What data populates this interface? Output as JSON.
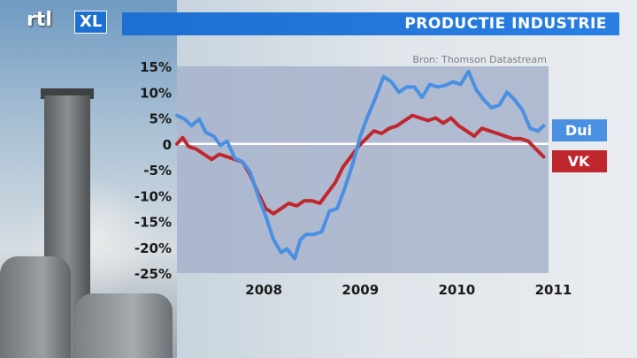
{
  "logo": {
    "rtl": "rtl",
    "xl": "XL"
  },
  "header": {
    "title": "PRODUCTIE INDUSTRIE"
  },
  "chart_data": {
    "type": "line",
    "title": "PRODUCTIE INDUSTRIE",
    "source": "Bron: Thomson Datastream",
    "ylim": [
      -25,
      15
    ],
    "xlim": [
      2007.6,
      2011.45
    ],
    "yticks": [
      15,
      10,
      5,
      0,
      -5,
      -10,
      -15,
      -20,
      -25
    ],
    "ytick_labels": [
      "15%",
      "10%",
      "5%",
      "0",
      "-5%",
      "-10%",
      "-15%",
      "-20%",
      "-25%"
    ],
    "xticks": [
      2008,
      2009,
      2010,
      2011
    ],
    "xtick_labels": [
      "2008",
      "2009",
      "2010",
      "2011"
    ],
    "grid": false,
    "series": [
      {
        "name": "Dui",
        "color": "#4a90e2",
        "points": [
          [
            2007.6,
            5.5
          ],
          [
            2007.68,
            4.8
          ],
          [
            2007.75,
            3.5
          ],
          [
            2007.83,
            4.8
          ],
          [
            2007.9,
            2.2
          ],
          [
            2007.98,
            1.5
          ],
          [
            2008.05,
            -0.3
          ],
          [
            2008.12,
            0.5
          ],
          [
            2008.2,
            -2.8
          ],
          [
            2008.28,
            -3.5
          ],
          [
            2008.36,
            -5.5
          ],
          [
            2008.44,
            -10.0
          ],
          [
            2008.52,
            -14.0
          ],
          [
            2008.6,
            -18.5
          ],
          [
            2008.68,
            -21.0
          ],
          [
            2008.74,
            -20.3
          ],
          [
            2008.82,
            -22.2
          ],
          [
            2008.88,
            -18.5
          ],
          [
            2008.94,
            -17.5
          ],
          [
            2009.02,
            -17.5
          ],
          [
            2009.1,
            -17.0
          ],
          [
            2009.18,
            -13.0
          ],
          [
            2009.26,
            -12.5
          ],
          [
            2009.34,
            -8.5
          ],
          [
            2009.42,
            -4.0
          ],
          [
            2009.5,
            1.5
          ],
          [
            2009.58,
            5.5
          ],
          [
            2009.66,
            9.0
          ],
          [
            2009.74,
            13.0
          ],
          [
            2009.82,
            12.0
          ],
          [
            2009.9,
            10.0
          ],
          [
            2009.98,
            11.0
          ],
          [
            2010.06,
            11.0
          ],
          [
            2010.14,
            9.0
          ],
          [
            2010.22,
            11.5
          ],
          [
            2010.3,
            11.0
          ],
          [
            2010.38,
            11.3
          ],
          [
            2010.46,
            12.0
          ],
          [
            2010.54,
            11.5
          ],
          [
            2010.62,
            14.0
          ],
          [
            2010.7,
            10.5
          ],
          [
            2010.78,
            8.5
          ],
          [
            2010.86,
            7.0
          ],
          [
            2010.94,
            7.5
          ],
          [
            2011.02,
            10.0
          ],
          [
            2011.1,
            8.5
          ],
          [
            2011.18,
            6.5
          ],
          [
            2011.26,
            3.0
          ],
          [
            2011.34,
            2.5
          ],
          [
            2011.4,
            3.5
          ]
        ]
      },
      {
        "name": "VK",
        "color": "#c0272d",
        "points": [
          [
            2007.6,
            0.0
          ],
          [
            2007.66,
            1.2
          ],
          [
            2007.72,
            -0.5
          ],
          [
            2007.8,
            -1.0
          ],
          [
            2007.88,
            -2.0
          ],
          [
            2007.96,
            -3.0
          ],
          [
            2008.04,
            -2.0
          ],
          [
            2008.12,
            -2.5
          ],
          [
            2008.2,
            -3.0
          ],
          [
            2008.28,
            -3.5
          ],
          [
            2008.36,
            -6.0
          ],
          [
            2008.44,
            -9.5
          ],
          [
            2008.52,
            -12.5
          ],
          [
            2008.6,
            -13.5
          ],
          [
            2008.68,
            -12.5
          ],
          [
            2008.76,
            -11.5
          ],
          [
            2008.84,
            -12.0
          ],
          [
            2008.92,
            -11.0
          ],
          [
            2009.0,
            -11.0
          ],
          [
            2009.08,
            -11.5
          ],
          [
            2009.16,
            -9.5
          ],
          [
            2009.24,
            -7.5
          ],
          [
            2009.32,
            -4.5
          ],
          [
            2009.4,
            -2.5
          ],
          [
            2009.48,
            -0.5
          ],
          [
            2009.56,
            1.0
          ],
          [
            2009.64,
            2.5
          ],
          [
            2009.72,
            2.0
          ],
          [
            2009.8,
            3.0
          ],
          [
            2009.88,
            3.5
          ],
          [
            2009.96,
            4.5
          ],
          [
            2010.04,
            5.5
          ],
          [
            2010.12,
            5.0
          ],
          [
            2010.2,
            4.5
          ],
          [
            2010.28,
            5.0
          ],
          [
            2010.36,
            4.0
          ],
          [
            2010.44,
            5.0
          ],
          [
            2010.52,
            3.5
          ],
          [
            2010.6,
            2.5
          ],
          [
            2010.68,
            1.5
          ],
          [
            2010.76,
            3.0
          ],
          [
            2010.84,
            2.5
          ],
          [
            2010.92,
            2.0
          ],
          [
            2011.0,
            1.5
          ],
          [
            2011.08,
            1.0
          ],
          [
            2011.16,
            1.0
          ],
          [
            2011.24,
            0.5
          ],
          [
            2011.32,
            -1.0
          ],
          [
            2011.4,
            -2.5
          ]
        ]
      }
    ]
  }
}
